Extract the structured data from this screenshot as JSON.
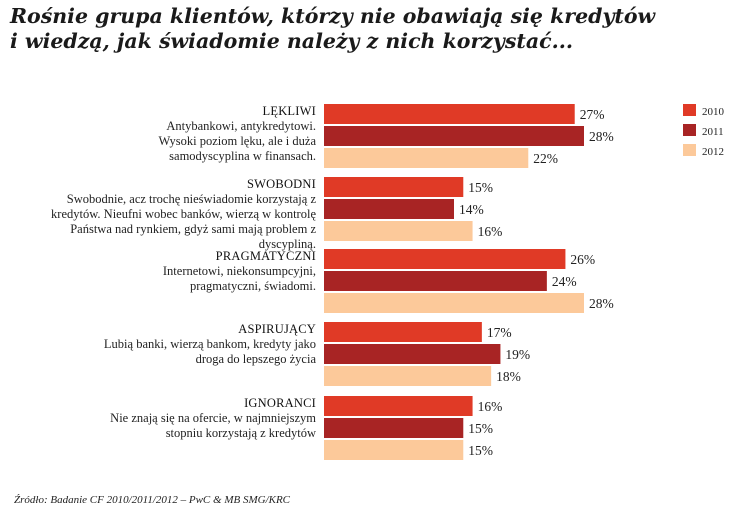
{
  "title_lines": [
    "Rośnie grupa klientów, którzy nie obawiają się kredytów",
    "i wiedzą, jak świadomie należy z nich korzystać..."
  ],
  "source": "Źródło: Badanie CF 2010/2011/2012 – PwC & MB SMG/KRC",
  "chart_data": {
    "type": "bar",
    "orientation": "horizontal",
    "title": "Rośnie grupa klientów, którzy nie obawiają się kredytów i wiedzą, jak świadomie należy z nich korzystać...",
    "value_suffix": "%",
    "xlim": [
      0,
      28
    ],
    "series": [
      {
        "name": "2010",
        "color": "#e03a26",
        "values": [
          27,
          15,
          26,
          17,
          16
        ]
      },
      {
        "name": "2011",
        "color": "#a82424",
        "values": [
          28,
          14,
          24,
          19,
          15
        ]
      },
      {
        "name": "2012",
        "color": "#fcc99a",
        "values": [
          22,
          16,
          28,
          18,
          15
        ]
      }
    ],
    "categories": [
      {
        "name": "LĘKLIWI",
        "description": [
          "Antybankowi, antykredytowi.",
          "Wysoki poziom lęku, ale i duża",
          "samodyscyplina w finansach."
        ]
      },
      {
        "name": "SWOBODNI",
        "description": [
          "Swobodnie, acz trochę nieświadomie korzystają z",
          "kredytów. Nieufni wobec banków, wierzą w kontrolę",
          "Państwa nad rynkiem, gdyż sami mają problem z",
          "dyscypliną."
        ]
      },
      {
        "name": "PRAGMATYCZNI",
        "description": [
          "Internetowi, niekonsumpcyjni,",
          "pragmatyczni, świadomi."
        ]
      },
      {
        "name": "ASPIRUJĄCY",
        "description": [
          "Lubią banki, wierzą bankom, kredyty jako",
          "droga do lepszego życia"
        ]
      },
      {
        "name": "IGNORANCI",
        "description": [
          "Nie znają się na ofercie, w najmniejszym",
          "stopniu korzystają z kredytów"
        ]
      }
    ],
    "legend": {
      "position": "top-right"
    }
  }
}
